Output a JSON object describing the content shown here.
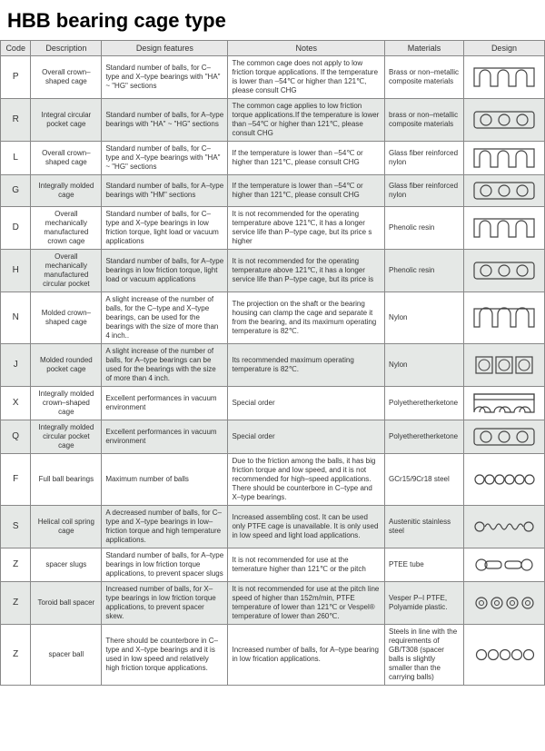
{
  "title": "HBB bearing cage type",
  "headers": {
    "code": "Code",
    "description": "Description",
    "features": "Design features",
    "notes": "Notes",
    "materials": "Materials",
    "design": "Design"
  },
  "rows": [
    {
      "code": "P",
      "desc": "Overall crown–shaped cage",
      "feat": "Standard number of balls, for C–type and X–type bearings with \"HA\" ~ \"HG\" sections",
      "notes": "The common cage does not apply to low friction torque applications. If the temperature is lower than –54℃ or higher than 121℃, please consult CHG",
      "mat": "Brass or non–metallic composite materials",
      "design": "crown"
    },
    {
      "code": "R",
      "desc": "Integral circular pocket cage",
      "feat": "Standard number of balls, for A–type bearings with \"HA\" ~ \"HG\" sections",
      "notes": "The common cage applies to low friction torque applications.If the temperature is lower than –54℃ or higher than 121℃, please consult CHG",
      "mat": "brass or non–metallic composite materials",
      "design": "circular"
    },
    {
      "code": "L",
      "desc": "Overall crown–shaped cage",
      "feat": "Standard number of balls, for C–type and X–type bearings with \"HA\" ~ \"HG\" sections",
      "notes": "If the temperature is lower than –54℃ or higher than 121℃, please consult CHG",
      "mat": "Glass fiber reinforced nylon",
      "design": "crown"
    },
    {
      "code": "G",
      "desc": "Integrally molded cage",
      "feat": "Standard number of balls, for A–type bearings with \"HM\" sections",
      "notes": "If the temperature is lower than –54℃ or higher than 121℃, please consult CHG",
      "mat": "Glass fiber reinforced nylon",
      "design": "circular"
    },
    {
      "code": "D",
      "desc": "Overall mechanically manufactured crown cage",
      "feat": "Standard number of balls, for C–type and X–type bearings in low friction torque, light load or vacuum applications",
      "notes": "It is not recommended for the operating temperature above 121℃, it has a longer service life than P–type cage, but its price s higher",
      "mat": "Phenolic resin",
      "design": "crown"
    },
    {
      "code": "H",
      "desc": "Overall mechanically manufactured circular pocket",
      "feat": "Standard number of balls, for A–type bearings in low friction torque, light load or vacuum applications",
      "notes": "It is not recommended for the operating temperature above 121℃, it has a longer service life than P–type cage, but its price is",
      "mat": "Phenolic resin",
      "design": "circular"
    },
    {
      "code": "N",
      "desc": "Molded crown–shaped cage",
      "feat": "A slight increase of the number of balls, for the C–type and X–type bearings, can be used for the bearings with the size of more than 4 inch..",
      "notes": "The projection on the shaft or the bearing housing can clamp the cage and separate it from the bearing, and its maximum operating temperature is 82℃.",
      "mat": "Nylon",
      "design": "crown2"
    },
    {
      "code": "J",
      "desc": "Molded rounded pocket cage",
      "feat": "A slight increase of the number of balls, for A–type bearings can be used for the bearings with the size of more than 4 inch.",
      "notes": "Its recommended maximum operating temperature is 82℃.",
      "mat": "Nylon",
      "design": "boxes"
    },
    {
      "code": "X",
      "desc": "Integrally molded crown–shaped cage",
      "feat": "Excellent performances in vacuum environment",
      "notes": "Special order",
      "mat": "Polyetheretherketone",
      "design": "crown3"
    },
    {
      "code": "Q",
      "desc": "Integrally molded circular pocket cage",
      "feat": "Excellent performances in vacuum environment",
      "notes": "Special order",
      "mat": "Polyetheretherketone",
      "design": "circular"
    },
    {
      "code": "F",
      "desc": "Full ball bearings",
      "feat": "Maximum number of balls",
      "notes": "Due to the friction among the balls, it has big friction torque and low speed, and it is not recommended for high–speed applications. There should be counterbore in C–type and X–type bearings.",
      "mat": "GCr15/9Cr18 steel",
      "design": "balls6"
    },
    {
      "code": "S",
      "desc": "Helical coil spring cage",
      "feat": "A decreased number of balls, for C–type and X–type bearings in low–friction torque and high temperature applications.",
      "notes": "Increased assembling cost. It can be used only PTFE cage is unavailable. It is only used in low speed and light load applications.",
      "mat": "Austenitic stainless steel",
      "design": "spring"
    },
    {
      "code": "Z",
      "desc": "spacer slugs",
      "feat": "Standard number of balls, for A–type bearings in low friction torque applications, to prevent spacer slugs",
      "notes": "It is not recommended for use at the temerature higher than 121℃ or the pitch",
      "mat": "PTEE tube",
      "design": "slugs"
    },
    {
      "code": "Z",
      "desc": "Toroid ball spacer",
      "feat": "Increased number of balls, for X–type bearings in low friction torque applications, to prevent spacer skew.",
      "notes": "It is not recommended for use at the pitch line speed of higher than 152m/min, PTFE temperature of lower than 121℃ or Vespel® temperature of lower than 260℃.",
      "mat": "Vesper P–I PTFE, Polyamide plastic.",
      "design": "toroid"
    },
    {
      "code": "Z",
      "desc": "spacer ball",
      "feat": "There should be counterbore in C–type and X–type bearings and it is used in low speed and relatively high friction torque applications.",
      "notes": "Increased number of balls, for A–type bearing in low frication applications.",
      "mat": "Steels in line with the requirements of GB/T308 (spacer balls is slightly smaller than the carrying balls)",
      "design": "balls5"
    }
  ],
  "colors": {
    "stroke": "#444444",
    "header_bg": "#e8e8e8",
    "alt_bg": "#e5e8e6",
    "border": "#888888"
  }
}
